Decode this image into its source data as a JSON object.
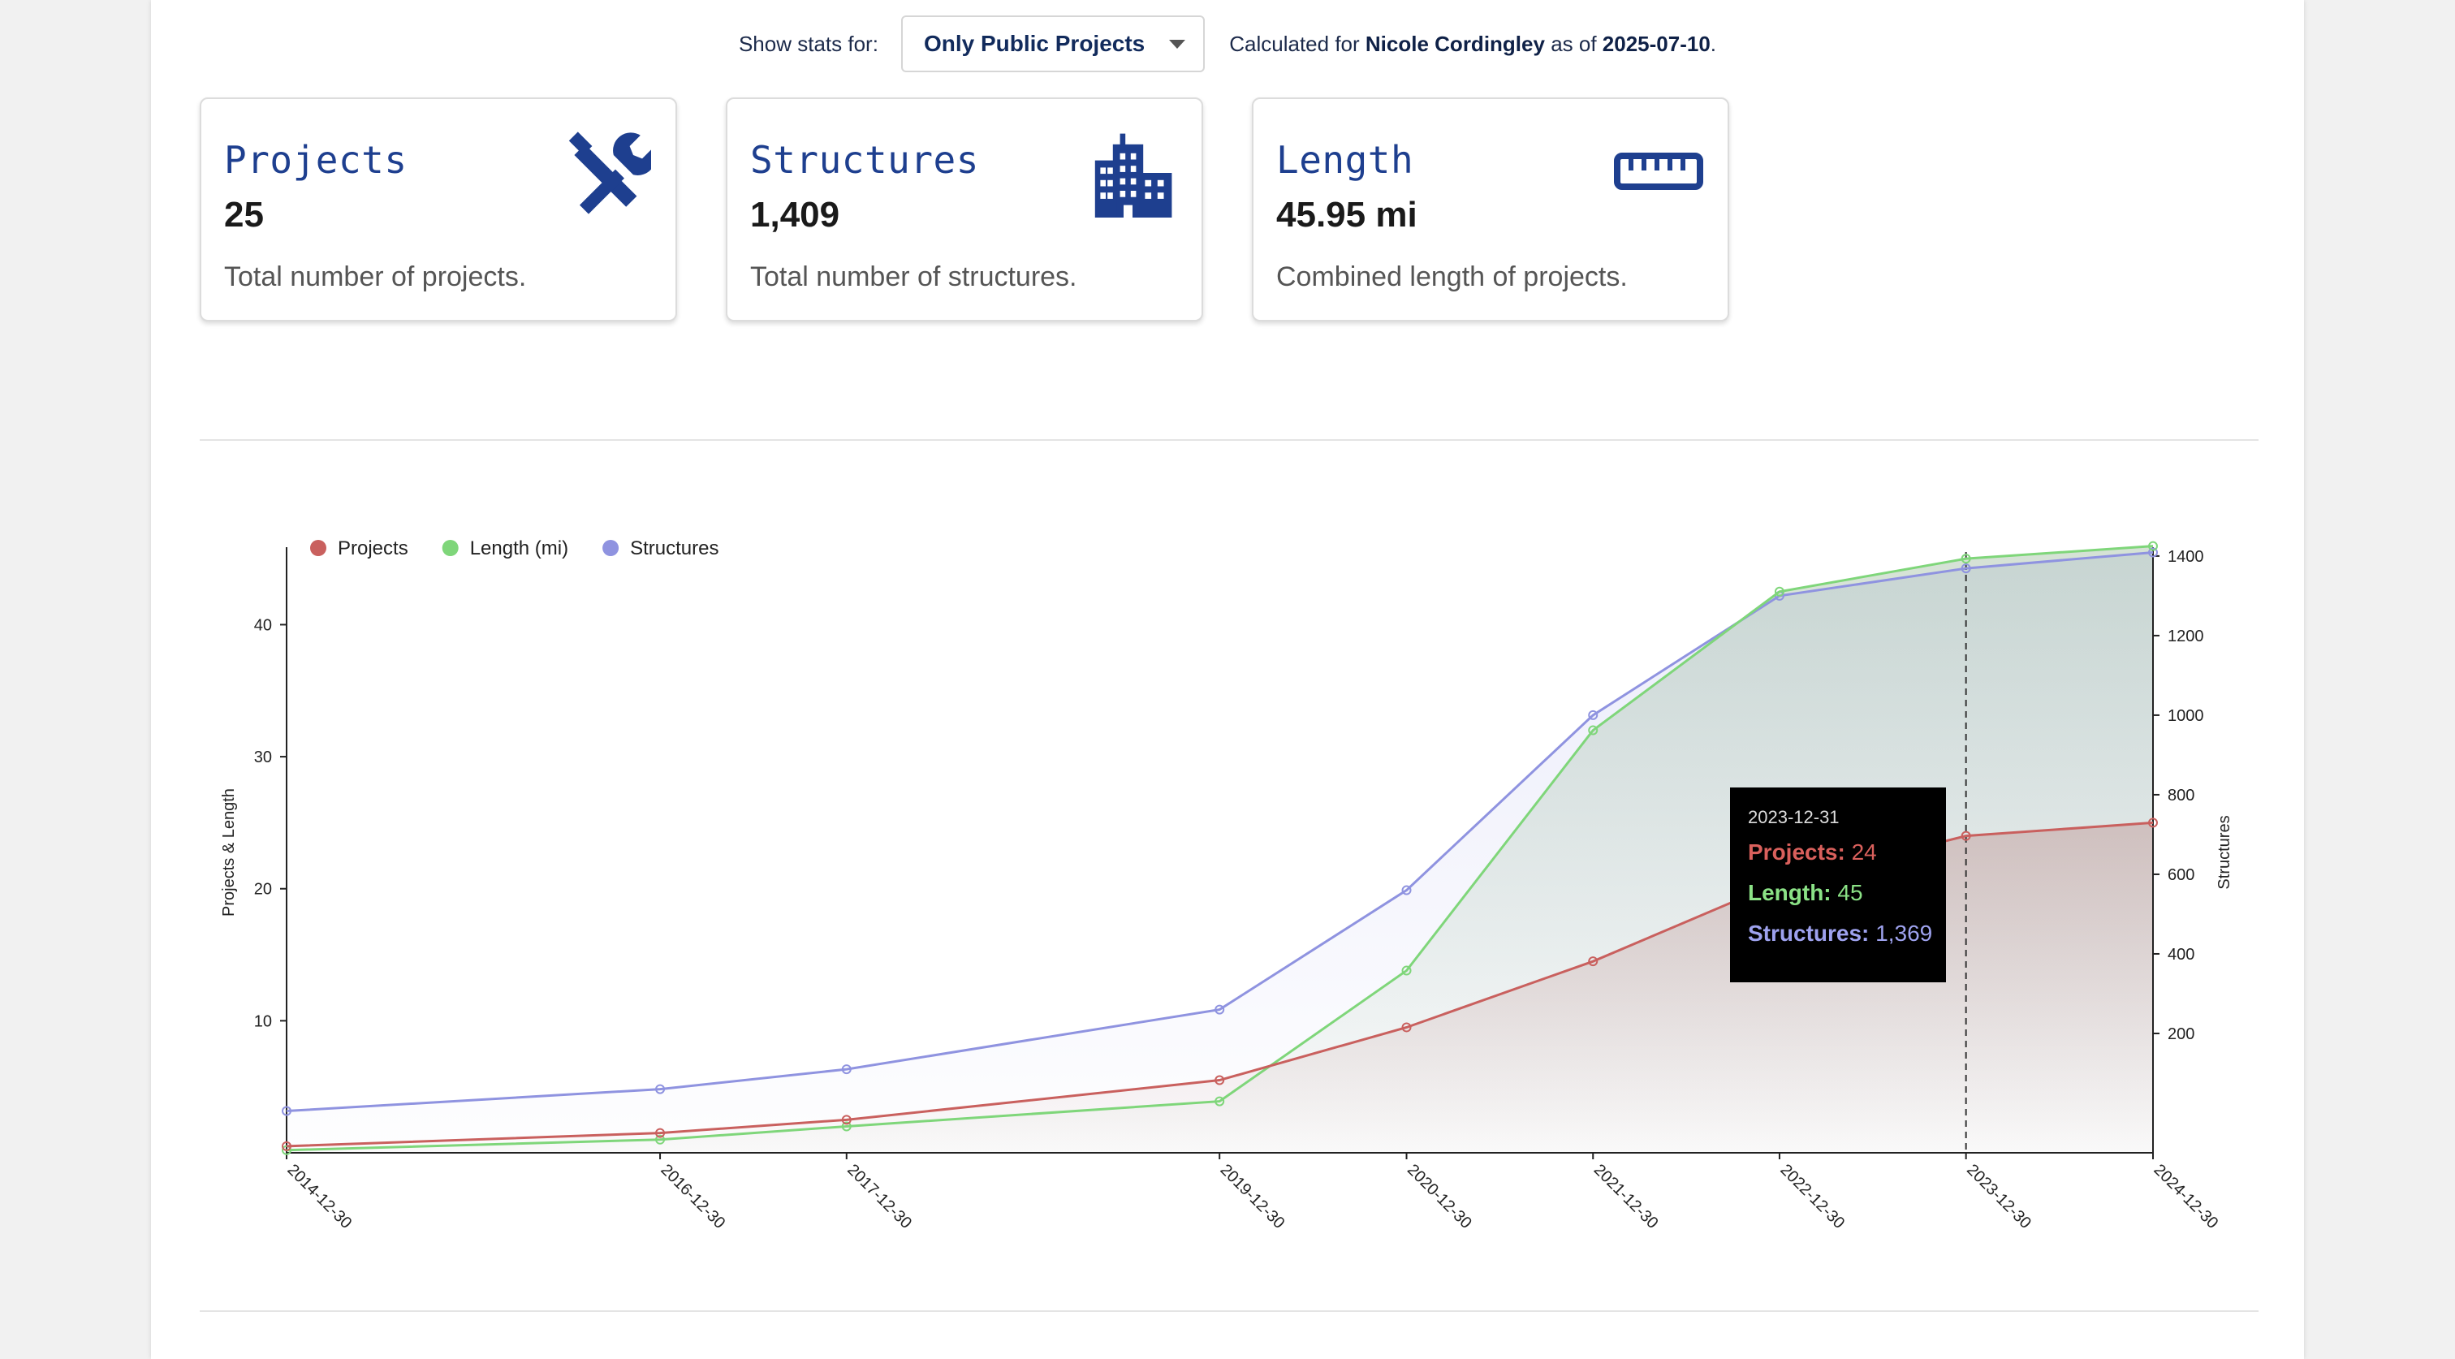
{
  "filter": {
    "label": "Show stats for:",
    "selected": "Only Public Projects",
    "calc_prefix": "Calculated for",
    "user": "Nicole Cordingley",
    "as_of": "as of",
    "date": "2025-07-10",
    "period": "."
  },
  "cards": [
    {
      "title": "Projects",
      "value": "25",
      "desc": "Total number of projects.",
      "icon": "tools-icon"
    },
    {
      "title": "Structures",
      "value": "1,409",
      "desc": "Total number of structures.",
      "icon": "building-icon"
    },
    {
      "title": "Length",
      "value": "45.95 mi",
      "desc": "Combined length of projects.",
      "icon": "ruler-icon"
    }
  ],
  "colors": {
    "accent": "#1e3f8f",
    "projects": "#c9605e",
    "length": "#7fd67a",
    "structures": "#8f93e0"
  },
  "chart_data": {
    "type": "line",
    "x": [
      "2014-12-30",
      "2016-12-30",
      "2017-12-30",
      "2019-12-30",
      "2020-12-30",
      "2021-12-30",
      "2022-12-30",
      "2023-12-30",
      "2024-12-30"
    ],
    "series": [
      {
        "name": "Projects",
        "axis": "left",
        "values": [
          0.5,
          1.5,
          2.5,
          5.5,
          9.5,
          14.5,
          20.5,
          24,
          25
        ]
      },
      {
        "name": "Length (mi)",
        "axis": "left",
        "values": [
          0.2,
          1.0,
          2.0,
          3.9,
          13.8,
          32,
          42.5,
          45,
          45.95
        ]
      },
      {
        "name": "Structures",
        "axis": "right",
        "values": [
          5,
          60,
          110,
          260,
          560,
          1000,
          1300,
          1369,
          1409
        ]
      }
    ],
    "y_left": {
      "label": "Projects & Length",
      "ticks": [
        10,
        20,
        30,
        40
      ],
      "lim": [
        0,
        45.5
      ]
    },
    "y_right": {
      "label": "Structures",
      "ticks": [
        200,
        400,
        600,
        800,
        1000,
        1200,
        1400
      ],
      "lim": [
        -100,
        1410
      ]
    },
    "legend_position": "top-left",
    "grid": false,
    "tooltip": {
      "date": "2023-12-31",
      "rows": [
        {
          "label": "Projects:",
          "value": "24"
        },
        {
          "label": "Length:",
          "value": "45"
        },
        {
          "label": "Structures:",
          "value": "1,369"
        }
      ]
    }
  }
}
